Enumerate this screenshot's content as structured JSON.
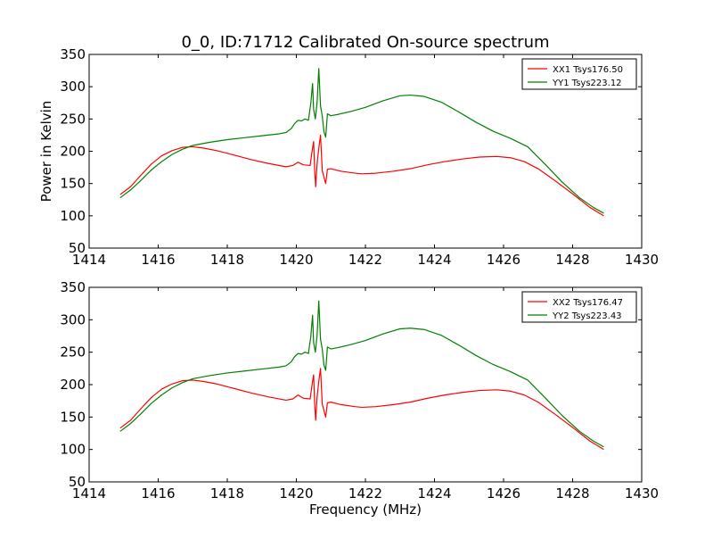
{
  "chart_data": [
    {
      "type": "line",
      "title": "0_0, ID:71712 Calibrated On-source spectrum",
      "xlabel": "",
      "ylabel": "Power in Kelvin",
      "xlim": [
        1414,
        1430
      ],
      "ylim": [
        50,
        350
      ],
      "xticks": [
        1414,
        1416,
        1418,
        1420,
        1422,
        1424,
        1426,
        1428,
        1430
      ],
      "yticks": [
        50,
        100,
        150,
        200,
        250,
        300,
        350
      ],
      "grid": false,
      "legend": "top-right",
      "series": [
        {
          "name": "XX1 Tsys176.50",
          "color": "#ff0000",
          "points": [
            [
              1414.9,
              133
            ],
            [
              1415.2,
              145
            ],
            [
              1415.5,
              163
            ],
            [
              1415.8,
              180
            ],
            [
              1416.1,
              193
            ],
            [
              1416.4,
              201
            ],
            [
              1416.7,
              206
            ],
            [
              1417.0,
              207
            ],
            [
              1417.3,
              205
            ],
            [
              1417.7,
              201
            ],
            [
              1418.2,
              194
            ],
            [
              1418.7,
              187
            ],
            [
              1419.2,
              181
            ],
            [
              1419.7,
              176
            ],
            [
              1419.9,
              178
            ],
            [
              1420.05,
              183
            ],
            [
              1420.2,
              179
            ],
            [
              1420.4,
              178
            ],
            [
              1420.45,
              198
            ],
            [
              1420.5,
              215
            ],
            [
              1420.53,
              172
            ],
            [
              1420.56,
              145
            ],
            [
              1420.6,
              180
            ],
            [
              1420.65,
              205
            ],
            [
              1420.7,
              225
            ],
            [
              1420.75,
              170
            ],
            [
              1420.8,
              160
            ],
            [
              1420.85,
              150
            ],
            [
              1420.9,
              172
            ],
            [
              1421.0,
              173
            ],
            [
              1421.3,
              169
            ],
            [
              1421.7,
              166
            ],
            [
              1421.9,
              165
            ],
            [
              1422.3,
              166
            ],
            [
              1422.8,
              169
            ],
            [
              1423.3,
              173
            ],
            [
              1423.8,
              179
            ],
            [
              1424.3,
              184
            ],
            [
              1424.8,
              188
            ],
            [
              1425.3,
              191
            ],
            [
              1425.8,
              192
            ],
            [
              1426.2,
              190
            ],
            [
              1426.6,
              184
            ],
            [
              1427.0,
              173
            ],
            [
              1427.5,
              154
            ],
            [
              1428.0,
              134
            ],
            [
              1428.5,
              113
            ],
            [
              1428.9,
              100
            ]
          ]
        },
        {
          "name": "YY1 Tsys223.12",
          "color": "#008000",
          "points": [
            [
              1414.9,
              128
            ],
            [
              1415.2,
              140
            ],
            [
              1415.5,
              155
            ],
            [
              1415.8,
              171
            ],
            [
              1416.1,
              184
            ],
            [
              1416.4,
              195
            ],
            [
              1416.7,
              203
            ],
            [
              1417.0,
              209
            ],
            [
              1417.5,
              214
            ],
            [
              1418.0,
              218
            ],
            [
              1418.5,
              221
            ],
            [
              1419.0,
              224
            ],
            [
              1419.5,
              227
            ],
            [
              1419.7,
              229
            ],
            [
              1419.85,
              235
            ],
            [
              1419.95,
              243
            ],
            [
              1420.05,
              248
            ],
            [
              1420.15,
              247
            ],
            [
              1420.25,
              250
            ],
            [
              1420.35,
              248
            ],
            [
              1420.42,
              275
            ],
            [
              1420.47,
              305
            ],
            [
              1420.5,
              265
            ],
            [
              1420.55,
              250
            ],
            [
              1420.6,
              275
            ],
            [
              1420.65,
              328
            ],
            [
              1420.7,
              270
            ],
            [
              1420.75,
              255
            ],
            [
              1420.8,
              230
            ],
            [
              1420.85,
              222
            ],
            [
              1420.9,
              258
            ],
            [
              1421.0,
              255
            ],
            [
              1421.2,
              257
            ],
            [
              1421.6,
              262
            ],
            [
              1422.0,
              268
            ],
            [
              1422.5,
              278
            ],
            [
              1423.0,
              286
            ],
            [
              1423.3,
              287
            ],
            [
              1423.7,
              285
            ],
            [
              1424.2,
              276
            ],
            [
              1424.7,
              261
            ],
            [
              1425.2,
              245
            ],
            [
              1425.7,
              231
            ],
            [
              1426.2,
              220
            ],
            [
              1426.7,
              207
            ],
            [
              1427.2,
              180
            ],
            [
              1427.7,
              152
            ],
            [
              1428.2,
              128
            ],
            [
              1428.6,
              113
            ],
            [
              1428.9,
              104
            ]
          ]
        }
      ]
    },
    {
      "type": "line",
      "title": "",
      "xlabel": "Frequency (MHz)",
      "ylabel": "",
      "xlim": [
        1414,
        1430
      ],
      "ylim": [
        50,
        350
      ],
      "xticks": [
        1414,
        1416,
        1418,
        1420,
        1422,
        1424,
        1426,
        1428,
        1430
      ],
      "yticks": [
        50,
        100,
        150,
        200,
        250,
        300,
        350
      ],
      "grid": false,
      "legend": "top-right",
      "series": [
        {
          "name": "XX2 Tsys176.47",
          "color": "#ff0000",
          "points": [
            [
              1414.9,
              133
            ],
            [
              1415.2,
              145
            ],
            [
              1415.5,
              163
            ],
            [
              1415.8,
              180
            ],
            [
              1416.1,
              193
            ],
            [
              1416.4,
              201
            ],
            [
              1416.7,
              206
            ],
            [
              1417.0,
              207
            ],
            [
              1417.3,
              205
            ],
            [
              1417.7,
              201
            ],
            [
              1418.2,
              194
            ],
            [
              1418.7,
              187
            ],
            [
              1419.2,
              181
            ],
            [
              1419.7,
              176
            ],
            [
              1419.9,
              178
            ],
            [
              1420.05,
              184
            ],
            [
              1420.2,
              179
            ],
            [
              1420.4,
              178
            ],
            [
              1420.45,
              198
            ],
            [
              1420.5,
              215
            ],
            [
              1420.53,
              172
            ],
            [
              1420.56,
              145
            ],
            [
              1420.6,
              180
            ],
            [
              1420.65,
              205
            ],
            [
              1420.7,
              225
            ],
            [
              1420.75,
              170
            ],
            [
              1420.8,
              160
            ],
            [
              1420.85,
              150
            ],
            [
              1420.9,
              172
            ],
            [
              1421.0,
              173
            ],
            [
              1421.3,
              169
            ],
            [
              1421.7,
              166
            ],
            [
              1421.9,
              165
            ],
            [
              1422.3,
              166
            ],
            [
              1422.8,
              169
            ],
            [
              1423.3,
              173
            ],
            [
              1423.8,
              179
            ],
            [
              1424.3,
              184
            ],
            [
              1424.8,
              188
            ],
            [
              1425.3,
              191
            ],
            [
              1425.8,
              192
            ],
            [
              1426.2,
              190
            ],
            [
              1426.6,
              184
            ],
            [
              1427.0,
              173
            ],
            [
              1427.5,
              154
            ],
            [
              1428.0,
              134
            ],
            [
              1428.5,
              113
            ],
            [
              1428.9,
              100
            ]
          ]
        },
        {
          "name": "YY2 Tsys223.43",
          "color": "#008000",
          "points": [
            [
              1414.9,
              128
            ],
            [
              1415.2,
              140
            ],
            [
              1415.5,
              155
            ],
            [
              1415.8,
              171
            ],
            [
              1416.1,
              184
            ],
            [
              1416.4,
              195
            ],
            [
              1416.7,
              203
            ],
            [
              1417.0,
              209
            ],
            [
              1417.5,
              214
            ],
            [
              1418.0,
              218
            ],
            [
              1418.5,
              221
            ],
            [
              1419.0,
              224
            ],
            [
              1419.5,
              227
            ],
            [
              1419.7,
              229
            ],
            [
              1419.85,
              235
            ],
            [
              1419.95,
              243
            ],
            [
              1420.05,
              248
            ],
            [
              1420.15,
              247
            ],
            [
              1420.25,
              250
            ],
            [
              1420.35,
              248
            ],
            [
              1420.42,
              275
            ],
            [
              1420.47,
              307
            ],
            [
              1420.5,
              265
            ],
            [
              1420.55,
              250
            ],
            [
              1420.6,
              275
            ],
            [
              1420.65,
              329
            ],
            [
              1420.7,
              270
            ],
            [
              1420.75,
              255
            ],
            [
              1420.8,
              230
            ],
            [
              1420.85,
              222
            ],
            [
              1420.9,
              258
            ],
            [
              1421.0,
              255
            ],
            [
              1421.2,
              257
            ],
            [
              1421.6,
              262
            ],
            [
              1422.0,
              268
            ],
            [
              1422.5,
              278
            ],
            [
              1423.0,
              286
            ],
            [
              1423.3,
              287
            ],
            [
              1423.7,
              285
            ],
            [
              1424.2,
              276
            ],
            [
              1424.7,
              261
            ],
            [
              1425.2,
              245
            ],
            [
              1425.7,
              231
            ],
            [
              1426.2,
              220
            ],
            [
              1426.7,
              207
            ],
            [
              1427.2,
              180
            ],
            [
              1427.7,
              152
            ],
            [
              1428.2,
              128
            ],
            [
              1428.6,
              113
            ],
            [
              1428.9,
              104
            ]
          ]
        }
      ]
    }
  ]
}
